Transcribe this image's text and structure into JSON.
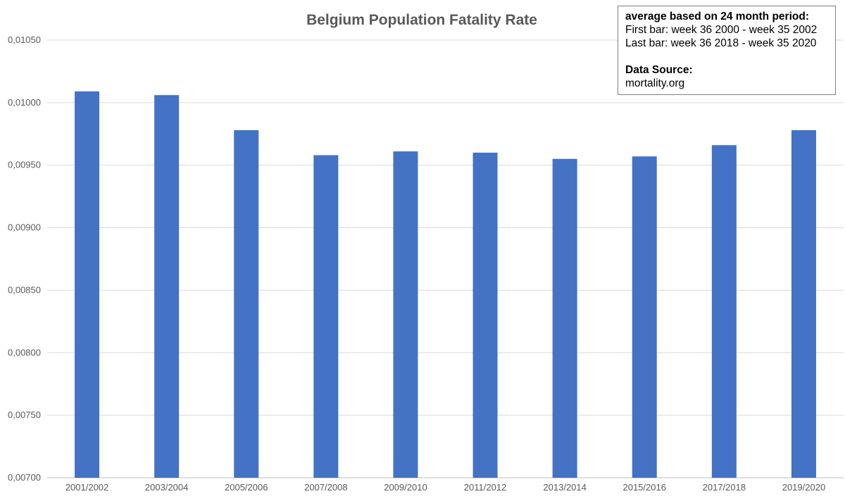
{
  "chart_data": {
    "type": "bar",
    "title": "Belgium Population Fatality Rate",
    "xlabel": "",
    "ylabel": "",
    "categories": [
      "2001/2002",
      "2003/2004",
      "2005/2006",
      "2007/2008",
      "2009/2010",
      "2011/2012",
      "2013/2014",
      "2015/2016",
      "2017/2018",
      "2019/2020"
    ],
    "values": [
      0.01009,
      0.01006,
      0.00978,
      0.00958,
      0.00961,
      0.0096,
      0.00955,
      0.00957,
      0.00966,
      0.00978
    ],
    "ylim": [
      0.007,
      0.0105
    ],
    "yticks": [
      "0,00700",
      "0,00750",
      "0,00800",
      "0,00850",
      "0,00900",
      "0,00950",
      "0,01000",
      "0,01050"
    ],
    "grid": true,
    "legend": "none",
    "bar_color": "#4472C4"
  },
  "info_box": {
    "heading": "average based on 24 month period:",
    "line1": "First bar: week 36 2000  - week 35 2002",
    "line2": "Last bar: week 36 2018  - week 35 2020",
    "source_heading": "Data Source:",
    "source": "mortality.org"
  }
}
